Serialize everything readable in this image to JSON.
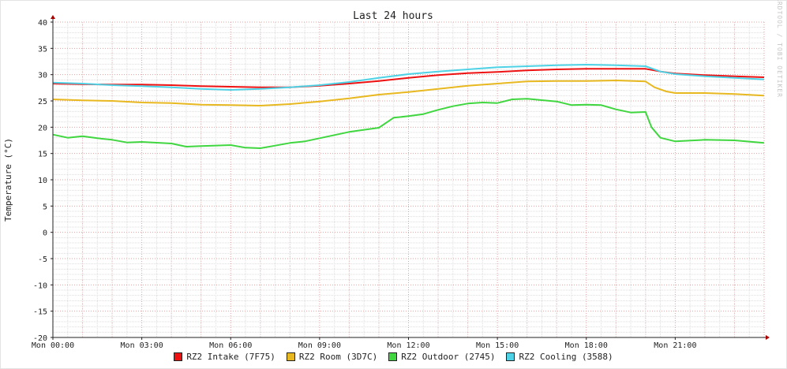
{
  "chart_data": {
    "type": "line",
    "title": "Last 24 hours",
    "ylabel": "Temperature (°C)",
    "xlabel": "",
    "watermark": "RRDTOOL / TOBI OETIKER",
    "ylim": [
      -20,
      40
    ],
    "xlim": [
      0,
      24
    ],
    "y_ticks": [
      -20,
      -15,
      -10,
      -5,
      0,
      5,
      10,
      15,
      20,
      25,
      30,
      35,
      40
    ],
    "x_ticks": [
      {
        "x": 0,
        "label": "Mon 00:00"
      },
      {
        "x": 3,
        "label": "Mon 03:00"
      },
      {
        "x": 6,
        "label": "Mon 06:00"
      },
      {
        "x": 9,
        "label": "Mon 09:00"
      },
      {
        "x": 12,
        "label": "Mon 12:00"
      },
      {
        "x": 15,
        "label": "Mon 15:00"
      },
      {
        "x": 18,
        "label": "Mon 18:00"
      },
      {
        "x": 21,
        "label": "Mon 21:00"
      }
    ],
    "grid": true,
    "legend_position": "bottom",
    "series": [
      {
        "name": "RZ2 Intake (7F75)",
        "color": "#ee1111",
        "points": [
          [
            0,
            28.3
          ],
          [
            1,
            28.2
          ],
          [
            2,
            28.1
          ],
          [
            3,
            28.1
          ],
          [
            4,
            28.0
          ],
          [
            5,
            27.8
          ],
          [
            6,
            27.7
          ],
          [
            7,
            27.6
          ],
          [
            8,
            27.6
          ],
          [
            9,
            27.9
          ],
          [
            10,
            28.3
          ],
          [
            11,
            28.8
          ],
          [
            12,
            29.4
          ],
          [
            13,
            29.9
          ],
          [
            14,
            30.3
          ],
          [
            15,
            30.5
          ],
          [
            16,
            30.8
          ],
          [
            17,
            31.0
          ],
          [
            18,
            31.1
          ],
          [
            19,
            31.1
          ],
          [
            20,
            31.1
          ],
          [
            20.5,
            30.6
          ],
          [
            21,
            30.2
          ],
          [
            22,
            29.9
          ],
          [
            23,
            29.7
          ],
          [
            24,
            29.5
          ]
        ]
      },
      {
        "name": "RZ2 Room (3D7C)",
        "color": "#e8b820",
        "points": [
          [
            0,
            25.3
          ],
          [
            1,
            25.1
          ],
          [
            2,
            25.0
          ],
          [
            3,
            24.7
          ],
          [
            4,
            24.6
          ],
          [
            5,
            24.3
          ],
          [
            6,
            24.2
          ],
          [
            7,
            24.1
          ],
          [
            8,
            24.4
          ],
          [
            9,
            24.9
          ],
          [
            10,
            25.5
          ],
          [
            11,
            26.2
          ],
          [
            12,
            26.7
          ],
          [
            13,
            27.3
          ],
          [
            14,
            27.9
          ],
          [
            15,
            28.3
          ],
          [
            16,
            28.7
          ],
          [
            17,
            28.8
          ],
          [
            18,
            28.8
          ],
          [
            19,
            28.9
          ],
          [
            20,
            28.7
          ],
          [
            20.3,
            27.6
          ],
          [
            20.7,
            26.8
          ],
          [
            21,
            26.5
          ],
          [
            22,
            26.5
          ],
          [
            23,
            26.3
          ],
          [
            24,
            26.0
          ]
        ]
      },
      {
        "name": "RZ2 Outdoor (2745)",
        "color": "#3fd63f",
        "points": [
          [
            0,
            18.6
          ],
          [
            0.5,
            18.0
          ],
          [
            1,
            18.3
          ],
          [
            1.5,
            17.9
          ],
          [
            2,
            17.6
          ],
          [
            2.5,
            17.1
          ],
          [
            3,
            17.2
          ],
          [
            4,
            16.9
          ],
          [
            4.5,
            16.3
          ],
          [
            5,
            16.4
          ],
          [
            6,
            16.6
          ],
          [
            6.5,
            16.1
          ],
          [
            7,
            16.0
          ],
          [
            7.5,
            16.5
          ],
          [
            8,
            17.0
          ],
          [
            8.5,
            17.3
          ],
          [
            9,
            17.9
          ],
          [
            10,
            19.1
          ],
          [
            11,
            19.9
          ],
          [
            11.5,
            21.8
          ],
          [
            12,
            22.1
          ],
          [
            12.5,
            22.5
          ],
          [
            13,
            23.3
          ],
          [
            13.5,
            24.0
          ],
          [
            14,
            24.5
          ],
          [
            14.5,
            24.7
          ],
          [
            15,
            24.6
          ],
          [
            15.5,
            25.3
          ],
          [
            16,
            25.4
          ],
          [
            17,
            24.9
          ],
          [
            17.5,
            24.2
          ],
          [
            18,
            24.3
          ],
          [
            18.5,
            24.2
          ],
          [
            19,
            23.4
          ],
          [
            19.5,
            22.8
          ],
          [
            20,
            22.9
          ],
          [
            20.2,
            20.0
          ],
          [
            20.5,
            18.0
          ],
          [
            21,
            17.3
          ],
          [
            22,
            17.6
          ],
          [
            23,
            17.5
          ],
          [
            24,
            17.0
          ]
        ]
      },
      {
        "name": "RZ2 Cooling (3588)",
        "color": "#4ed2e6",
        "points": [
          [
            0,
            28.5
          ],
          [
            1,
            28.3
          ],
          [
            2,
            28.0
          ],
          [
            3,
            27.8
          ],
          [
            4,
            27.6
          ],
          [
            5,
            27.3
          ],
          [
            6,
            27.1
          ],
          [
            7,
            27.3
          ],
          [
            8,
            27.6
          ],
          [
            9,
            28.0
          ],
          [
            10,
            28.6
          ],
          [
            11,
            29.4
          ],
          [
            12,
            30.1
          ],
          [
            13,
            30.6
          ],
          [
            14,
            31.0
          ],
          [
            15,
            31.4
          ],
          [
            16,
            31.6
          ],
          [
            17,
            31.8
          ],
          [
            18,
            31.9
          ],
          [
            19,
            31.8
          ],
          [
            20,
            31.6
          ],
          [
            20.5,
            30.6
          ],
          [
            21,
            30.1
          ],
          [
            22,
            29.7
          ],
          [
            23,
            29.4
          ],
          [
            24,
            29.1
          ]
        ]
      }
    ]
  }
}
